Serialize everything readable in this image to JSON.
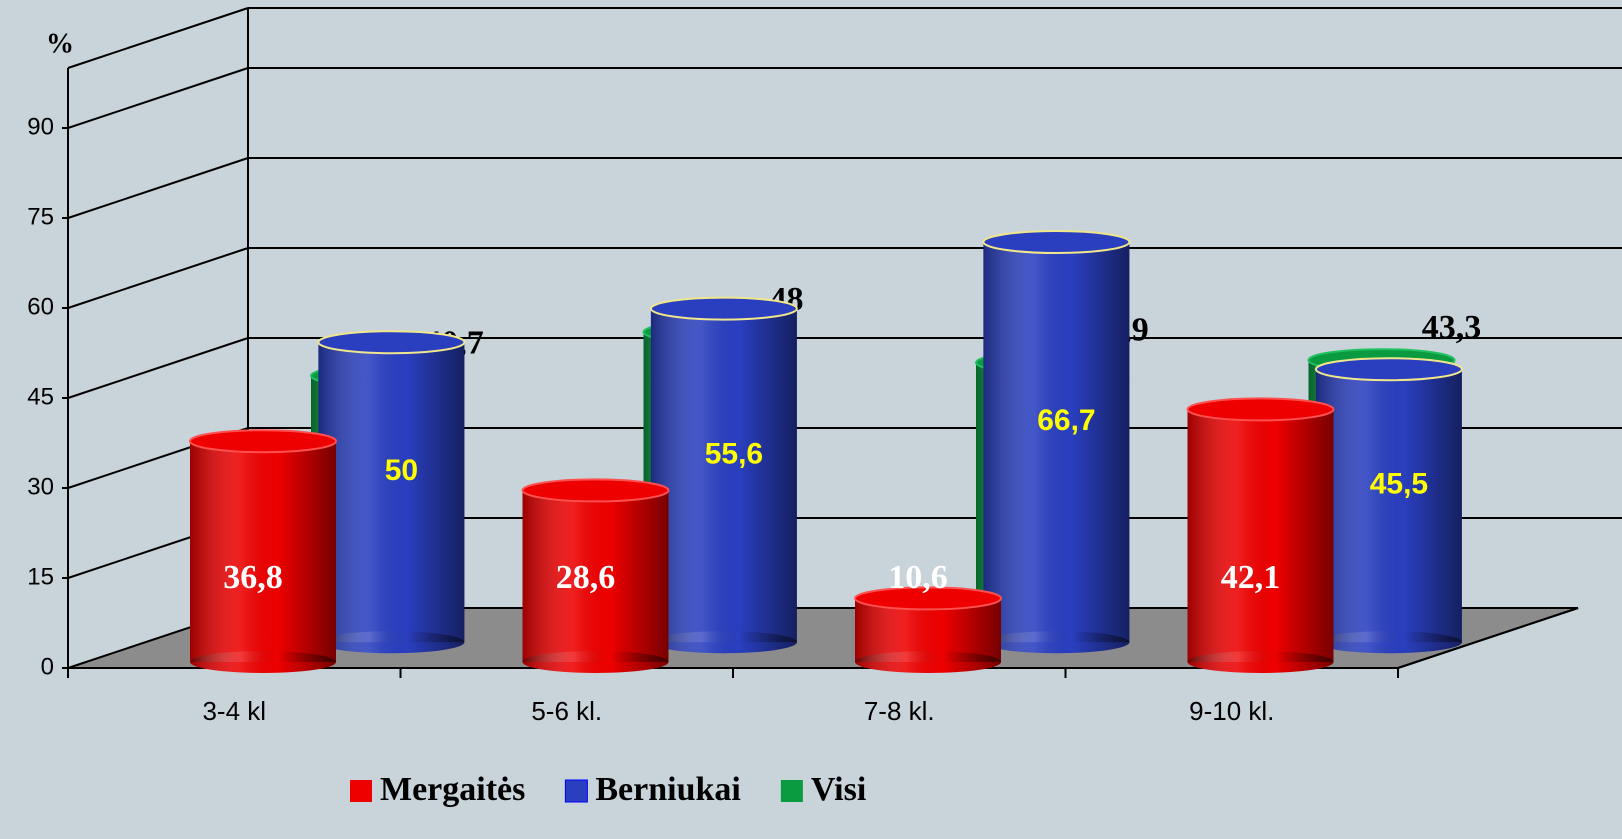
{
  "chart_data": {
    "type": "bar3d",
    "y_label": "%",
    "categories": [
      "3-4 kl",
      "5-6 kl.",
      "7-8 kl.",
      "9-10 kl."
    ],
    "series": [
      {
        "name": "Mergaitės",
        "color": "#ee0000",
        "values": [
          36.8,
          28.6,
          10.6,
          42.1
        ],
        "value_labels": [
          "36,8",
          "28,6",
          "10,6",
          "42,1"
        ]
      },
      {
        "name": "Berniukai",
        "color": "#2a3fc0",
        "values": [
          50,
          55.6,
          66.7,
          45.5
        ],
        "value_labels": [
          "50",
          "55,6",
          "66,7",
          "45,5"
        ]
      },
      {
        "name": "Visi",
        "color": "#0a9a40",
        "values": [
          40.7,
          48,
          42.9,
          43.3
        ],
        "value_labels": [
          "40,7",
          "48",
          "42,9",
          "43,3"
        ]
      }
    ],
    "ylim": [
      0,
      100
    ],
    "yticks": [
      0,
      15,
      30,
      45,
      60,
      75,
      90
    ],
    "grid": true
  }
}
